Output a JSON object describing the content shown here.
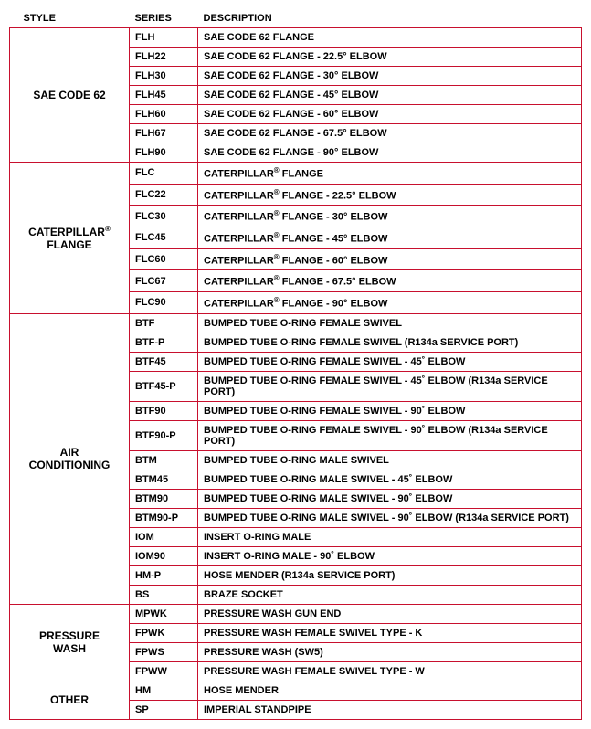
{
  "headers": {
    "style": "STYLE",
    "series": "SERIES",
    "description": "DESCRIPTION"
  },
  "colors": {
    "border": "#c8102e",
    "text": "#000000",
    "background": "#ffffff"
  },
  "font": {
    "family": "Arial",
    "header_size": 11,
    "cell_size": 11,
    "style_size": 12,
    "weight": "bold"
  },
  "column_widths": {
    "style": 110,
    "series": 62
  },
  "groups": [
    {
      "style_html": "SAE CODE 62",
      "rows": [
        {
          "series": "FLH",
          "desc": "SAE CODE 62 FLANGE"
        },
        {
          "series": "FLH22",
          "desc": "SAE CODE 62 FLANGE - 22.5° ELBOW"
        },
        {
          "series": "FLH30",
          "desc": "SAE CODE 62 FLANGE - 30° ELBOW"
        },
        {
          "series": "FLH45",
          "desc": "SAE CODE 62 FLANGE - 45° ELBOW"
        },
        {
          "series": "FLH60",
          "desc": "SAE CODE 62 FLANGE - 60° ELBOW"
        },
        {
          "series": "FLH67",
          "desc": "SAE CODE 62 FLANGE - 67.5° ELBOW"
        },
        {
          "series": "FLH90",
          "desc": "SAE CODE 62 FLANGE - 90° ELBOW"
        }
      ]
    },
    {
      "style_html": "CATERPILLAR<span class=\"reg\">®</span><br>FLANGE",
      "rows": [
        {
          "series": "FLC",
          "desc_html": "CATERPILLAR<span class=\"reg\">®</span> FLANGE"
        },
        {
          "series": "FLC22",
          "desc_html": "CATERPILLAR<span class=\"reg\">®</span> FLANGE - 22.5° ELBOW"
        },
        {
          "series": "FLC30",
          "desc_html": "CATERPILLAR<span class=\"reg\">®</span> FLANGE - 30° ELBOW"
        },
        {
          "series": "FLC45",
          "desc_html": "CATERPILLAR<span class=\"reg\">®</span> FLANGE - 45° ELBOW"
        },
        {
          "series": "FLC60",
          "desc_html": "CATERPILLAR<span class=\"reg\">®</span> FLANGE - 60° ELBOW"
        },
        {
          "series": "FLC67",
          "desc_html": "CATERPILLAR<span class=\"reg\">®</span> FLANGE - 67.5° ELBOW"
        },
        {
          "series": "FLC90",
          "desc_html": "CATERPILLAR<span class=\"reg\">®</span> FLANGE - 90° ELBOW"
        }
      ]
    },
    {
      "style_html": "AIR<br>CONDITIONING",
      "rows": [
        {
          "series": "BTF",
          "desc": "BUMPED TUBE O-RING FEMALE SWIVEL"
        },
        {
          "series": "BTF-P",
          "desc": "BUMPED TUBE O-RING FEMALE SWIVEL (R134a SERVICE PORT)"
        },
        {
          "series": "BTF45",
          "desc": "BUMPED TUBE O-RING FEMALE SWIVEL - 45˚ ELBOW"
        },
        {
          "series": "BTF45-P",
          "desc": "BUMPED TUBE O-RING FEMALE SWIVEL - 45˚ ELBOW (R134a SERVICE PORT)"
        },
        {
          "series": "BTF90",
          "desc": "BUMPED TUBE O-RING FEMALE SWIVEL - 90˚ ELBOW"
        },
        {
          "series": "BTF90-P",
          "desc": "BUMPED TUBE O-RING FEMALE SWIVEL - 90˚ ELBOW (R134a SERVICE PORT)"
        },
        {
          "series": "BTM",
          "desc": "BUMPED TUBE O-RING MALE SWIVEL"
        },
        {
          "series": "BTM45",
          "desc": "BUMPED TUBE O-RING MALE SWIVEL - 45˚ ELBOW"
        },
        {
          "series": "BTM90",
          "desc": "BUMPED TUBE O-RING MALE SWIVEL - 90˚ ELBOW"
        },
        {
          "series": "BTM90-P",
          "desc": "BUMPED TUBE O-RING MALE SWIVEL - 90˚ ELBOW (R134a SERVICE PORT)"
        },
        {
          "series": "IOM",
          "desc": "INSERT O-RING MALE"
        },
        {
          "series": "IOM90",
          "desc": "INSERT O-RING MALE - 90˚ ELBOW"
        },
        {
          "series": "HM-P",
          "desc": "HOSE MENDER (R134a SERVICE PORT)"
        },
        {
          "series": "BS",
          "desc": "BRAZE SOCKET"
        }
      ]
    },
    {
      "style_html": "PRESSURE<br>WASH",
      "rows": [
        {
          "series": "MPWK",
          "desc": "PRESSURE WASH GUN END"
        },
        {
          "series": "FPWK",
          "desc": "PRESSURE WASH FEMALE SWIVEL TYPE - K"
        },
        {
          "series": "FPWS",
          "desc": "PRESSURE WASH (SW5)"
        },
        {
          "series": "FPWW",
          "desc": "PRESSURE WASH FEMALE SWIVEL TYPE - W"
        }
      ]
    },
    {
      "style_html": "OTHER",
      "rows": [
        {
          "series": "HM",
          "desc": "HOSE MENDER"
        },
        {
          "series": "SP",
          "desc": "IMPERIAL STANDPIPE"
        }
      ]
    }
  ]
}
